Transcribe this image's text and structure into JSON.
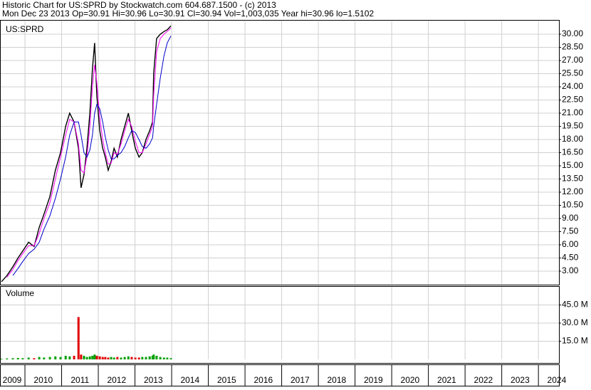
{
  "chart_data": [
    {
      "type": "line",
      "title": "Historic Chart for US:SPRD by Stockwatch.com 604.687.1500 - (c) 2013",
      "subtitle": "Mon Dec 23 2013  Op=30.91  Hi=30.96  Lo=30.91  Cl=30.94  Vol=1,003,035  Year hi=30.96  lo=1.5102",
      "label": "US:SPRD",
      "grid": true,
      "xlim": [
        2009.32,
        2024.56
      ],
      "xticks": [
        2009,
        2010,
        2011,
        2012,
        2013,
        2014,
        2015,
        2016,
        2017,
        2018,
        2019,
        2020,
        2021,
        2022,
        2023,
        2024
      ],
      "ylim": [
        1.5,
        31.5
      ],
      "yticks": [
        {
          "value": 3,
          "label": "3.00"
        },
        {
          "value": 4.5,
          "label": "4.50"
        },
        {
          "value": 6,
          "label": "6.00"
        },
        {
          "value": 7.5,
          "label": "7.50"
        },
        {
          "value": 9,
          "label": "9.00"
        },
        {
          "value": 10.5,
          "label": "10.50"
        },
        {
          "value": 12,
          "label": "12.00"
        },
        {
          "value": 13.5,
          "label": "13.50"
        },
        {
          "value": 15,
          "label": "15.00"
        },
        {
          "value": 16.5,
          "label": "16.50"
        },
        {
          "value": 18,
          "label": "18.00"
        },
        {
          "value": 19.5,
          "label": "19.50"
        },
        {
          "value": 21,
          "label": "21.00"
        },
        {
          "value": 22.5,
          "label": "22.50"
        },
        {
          "value": 24,
          "label": "24.00"
        },
        {
          "value": 25.5,
          "label": "25.50"
        },
        {
          "value": 27,
          "label": "27.00"
        },
        {
          "value": 28.5,
          "label": "28.50"
        },
        {
          "value": 30,
          "label": "30.00"
        }
      ],
      "x": [
        2009.36,
        2009.51,
        2009.67,
        2009.81,
        2009.94,
        2010.1,
        2010.25,
        2010.39,
        2010.52,
        2010.68,
        2010.83,
        2010.97,
        2011.11,
        2011.22,
        2011.34,
        2011.46,
        2011.53,
        2011.61,
        2011.69,
        2011.77,
        2011.84,
        2011.9,
        2011.96,
        2012.04,
        2012.12,
        2012.19,
        2012.27,
        2012.35,
        2012.43,
        2012.52,
        2012.62,
        2012.72,
        2012.82,
        2012.91,
        2013.01,
        2013.11,
        2013.2,
        2013.3,
        2013.4,
        2013.48,
        2013.51,
        2013.59,
        2013.69,
        2013.79,
        2013.88,
        2013.98
      ],
      "series": [
        {
          "color": "#000000",
          "values": [
            1.8,
            2.5,
            3.5,
            4.5,
            5.3,
            6.3,
            5.8,
            8.0,
            9.5,
            11.5,
            14.5,
            16.5,
            19.5,
            21,
            20,
            17,
            12.5,
            14,
            17,
            21,
            26,
            29,
            23,
            19,
            17,
            16,
            14.5,
            15.5,
            17,
            16,
            18,
            19.5,
            21,
            19,
            17,
            16,
            16.5,
            18,
            19,
            20,
            25.5,
            29.5,
            30,
            30.3,
            30.5,
            30.94
          ]
        },
        {
          "color": "#ff00ff",
          "values": [
            null,
            2.3,
            3.2,
            4.2,
            5.0,
            5.9,
            5.9,
            7.3,
            9.0,
            10.8,
            13.5,
            16.0,
            18.5,
            20.3,
            20.0,
            17.5,
            14.5,
            14.2,
            16.0,
            19.5,
            24.0,
            26.5,
            24.5,
            20.5,
            18.0,
            16.5,
            15.2,
            15.3,
            16.5,
            16.3,
            17.5,
            19.0,
            20.3,
            19.5,
            17.8,
            16.5,
            16.5,
            17.5,
            18.6,
            19.5,
            23,
            28,
            29.5,
            30,
            30.3,
            30.7
          ]
        },
        {
          "color": "#0000cc",
          "values": [
            null,
            null,
            2.5,
            3.3,
            4.1,
            5.0,
            5.5,
            6.3,
            7.8,
            9.3,
            11.3,
            13.5,
            16.0,
            18.5,
            20.0,
            20.0,
            18.5,
            16.5,
            16.0,
            16.8,
            18.5,
            21.0,
            22.0,
            21.5,
            20.0,
            18.3,
            16.8,
            15.8,
            15.8,
            16.2,
            16.5,
            17.2,
            18.2,
            19.0,
            18.8,
            18.0,
            17.2,
            17.0,
            17.5,
            18.2,
            19.5,
            22,
            25,
            27.5,
            29,
            29.8
          ]
        }
      ]
    },
    {
      "type": "bar",
      "title": "Volume",
      "grid": true,
      "up_color": "#00a000",
      "down_color": "#e00000",
      "xlim": [
        2009.32,
        2024.56
      ],
      "ylim": [
        0,
        60
      ],
      "yticks": [
        {
          "value": 15,
          "label": "15.0 M"
        },
        {
          "value": 30,
          "label": "30.0 M"
        },
        {
          "value": 45,
          "label": "45.0 M"
        }
      ],
      "x": [
        2009.36,
        2009.51,
        2009.67,
        2009.81,
        2009.94,
        2010.1,
        2010.25,
        2010.39,
        2010.52,
        2010.68,
        2010.83,
        2010.97,
        2011.11,
        2011.22,
        2011.34,
        2011.46,
        2011.53,
        2011.61,
        2011.69,
        2011.77,
        2011.84,
        2011.9,
        2011.96,
        2012.04,
        2012.12,
        2012.19,
        2012.27,
        2012.35,
        2012.43,
        2012.52,
        2012.62,
        2012.72,
        2012.82,
        2012.91,
        2013.01,
        2013.11,
        2013.2,
        2013.3,
        2013.4,
        2013.48,
        2013.51,
        2013.59,
        2013.69,
        2013.79,
        2013.88,
        2013.98
      ],
      "values": [
        0.5,
        0.8,
        1,
        1.2,
        1,
        1.5,
        1,
        2,
        1.5,
        2,
        2.5,
        2,
        3,
        2.5,
        3,
        35,
        4,
        3,
        2,
        2.5,
        3,
        4,
        3,
        2.5,
        2,
        2,
        1.5,
        2,
        1.5,
        2,
        1.5,
        2,
        2.5,
        2,
        1.5,
        1.5,
        2,
        2,
        2.5,
        3,
        4,
        3,
        2,
        1.5,
        1.5,
        1
      ]
    }
  ]
}
